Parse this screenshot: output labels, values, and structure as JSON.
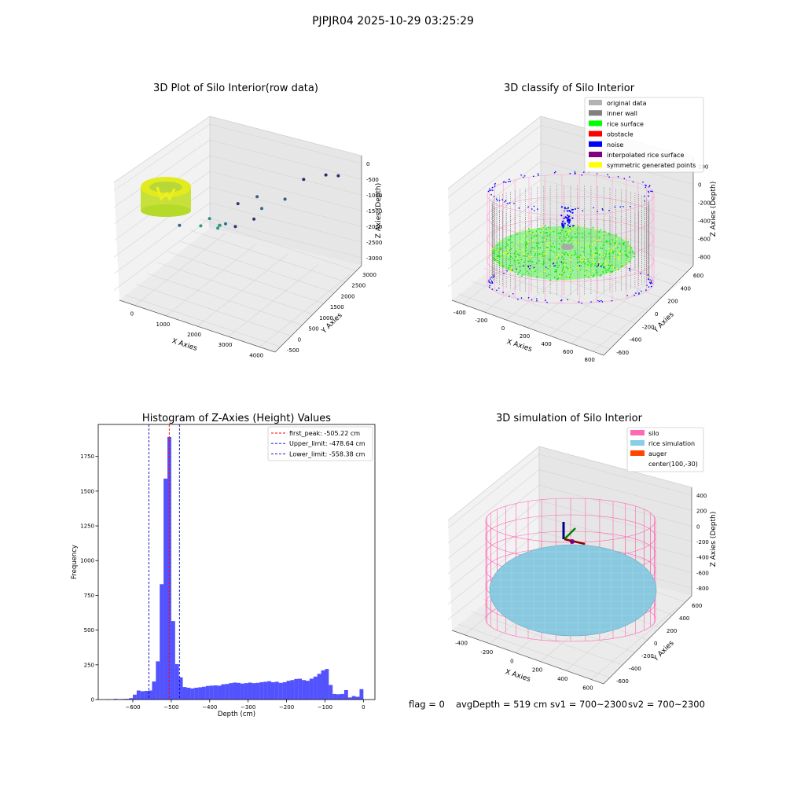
{
  "suptitle": "PJPJR04 2025-10-29 03:25:29",
  "footer": {
    "flag": "flag = 0",
    "avg": "avgDepth = 519 cm",
    "sv1": "sv1 = 700~2300",
    "sv2": "sv2 = 700~2300"
  },
  "chart_data": [
    {
      "type": "scatter3d",
      "title": "3D Plot of Silo Interior(row data)",
      "xlabel": "X Axies",
      "ylabel": "Y Axies",
      "zlabel": "Z Axies (Depth)",
      "xticks": [
        "0",
        "1000",
        "2000",
        "3000",
        "4000"
      ],
      "yticks": [
        "-500",
        "0",
        "500",
        "1000",
        "1500",
        "2000",
        "2500",
        "3000"
      ],
      "zticks": [
        "0",
        "-500",
        "-1000",
        "-1500",
        "-2000",
        "-2500",
        "-3000"
      ],
      "points": [
        {
          "x": 3900,
          "y": 3000,
          "z": -3000
        },
        {
          "x": 3700,
          "y": 2800,
          "z": -3100
        },
        {
          "x": 3300,
          "y": 2500,
          "z": -3050
        },
        {
          "x": 3000,
          "y": 1000,
          "z": -2900
        },
        {
          "x": 2700,
          "y": 700,
          "z": -2800
        },
        {
          "x": 2200,
          "y": 1500,
          "z": -2700
        },
        {
          "x": 2500,
          "y": 2900,
          "z": -1900
        },
        {
          "x": 2000,
          "y": 2700,
          "z": -1600
        },
        {
          "x": 1800,
          "y": 2800,
          "z": -1800
        },
        {
          "x": 1500,
          "y": 2000,
          "z": -1500
        },
        {
          "x": 800,
          "y": 1200,
          "z": -1800
        },
        {
          "x": 1200,
          "y": 2200,
          "z": -1200
        },
        {
          "x": 1000,
          "y": 2400,
          "z": -900
        },
        {
          "x": 900,
          "y": 2600,
          "z": -800
        },
        {
          "x": 700,
          "y": 2500,
          "z": -1000
        },
        {
          "x": 600,
          "y": 2300,
          "z": -900
        }
      ]
    },
    {
      "type": "scatter3d",
      "title": "3D classify of Silo Interior",
      "xlabel": "X Axies",
      "ylabel": "Y Axies",
      "zlabel": "Z Axies (Depth)",
      "xticks": [
        "-400",
        "-200",
        "0",
        "200",
        "400",
        "600",
        "800"
      ],
      "yticks": [
        "-600",
        "-400",
        "-200",
        "0",
        "200",
        "400",
        "600"
      ],
      "zticks": [
        "200",
        "0",
        "-200",
        "-400",
        "-600",
        "-800"
      ],
      "legend": [
        {
          "label": "original data",
          "color": "#b3b3b3"
        },
        {
          "label": "inner wall",
          "color": "#808080"
        },
        {
          "label": "rice surface",
          "color": "#00ff00"
        },
        {
          "label": "obstacle",
          "color": "#ff0000"
        },
        {
          "label": "noise",
          "color": "#0000ff"
        },
        {
          "label": "interpolated rice surface",
          "color": "#800080"
        },
        {
          "label": "symmetric generated points",
          "color": "#ffff00"
        }
      ]
    },
    {
      "type": "bar",
      "title": "Histogram of Z-Axies (Height) Values",
      "xlabel": "Depth (cm)",
      "ylabel": "Frequency",
      "xlim": [
        -690,
        30
      ],
      "ylim": [
        0,
        1980
      ],
      "xticks": [
        -600,
        -500,
        -400,
        -300,
        -200,
        -100,
        0
      ],
      "yticks": [
        0,
        250,
        500,
        750,
        1000,
        1250,
        1500,
        1750
      ],
      "bin_width": 10,
      "bin_starts": [
        -670,
        -650,
        -640,
        -630,
        -620,
        -610,
        -600,
        -590,
        -580,
        -570,
        -560,
        -550,
        -540,
        -530,
        -520,
        -510,
        -500,
        -490,
        -480,
        -470,
        -460,
        -450,
        -440,
        -430,
        -420,
        -410,
        -400,
        -390,
        -380,
        -370,
        -360,
        -350,
        -340,
        -330,
        -320,
        -310,
        -300,
        -290,
        -280,
        -270,
        -260,
        -250,
        -240,
        -230,
        -220,
        -210,
        -200,
        -190,
        -180,
        -170,
        -160,
        -150,
        -140,
        -130,
        -120,
        -110,
        -100,
        -90,
        -80,
        -70,
        -60,
        -50,
        -40,
        -30,
        -20,
        -10
      ],
      "values": [
        2,
        5,
        3,
        4,
        5,
        10,
        35,
        65,
        60,
        62,
        65,
        130,
        275,
        830,
        1590,
        1890,
        565,
        255,
        160,
        90,
        85,
        80,
        85,
        88,
        92,
        98,
        100,
        102,
        100,
        110,
        112,
        118,
        122,
        120,
        115,
        118,
        122,
        118,
        120,
        125,
        128,
        132,
        125,
        128,
        120,
        125,
        135,
        140,
        148,
        150,
        140,
        135,
        150,
        165,
        185,
        210,
        220,
        105,
        40,
        38,
        40,
        68,
        15,
        25,
        20,
        75
      ],
      "bar_color": "#0000ff",
      "vlines": [
        {
          "x": -505.22,
          "label": "first_peak: -505.22 cm",
          "color": "#ff0000"
        },
        {
          "x": -478.64,
          "label": "Upper_limit: -478.64 cm",
          "color": "#0000cc"
        },
        {
          "x": -558.38,
          "label": "Lower_limit: -558.38 cm",
          "color": "#0000cc"
        }
      ]
    },
    {
      "type": "surface3d",
      "title": "3D simulation of Silo Interior",
      "xlabel": "X Axies",
      "ylabel": "Y Axies",
      "zlabel": "Z Axies (Depth)",
      "xticks": [
        "-400",
        "-200",
        "0",
        "200",
        "400",
        "600"
      ],
      "yticks": [
        "-600",
        "-400",
        "-200",
        "0",
        "200",
        "400",
        "600"
      ],
      "zticks": [
        "400",
        "200",
        "0",
        "-200",
        "-400",
        "-600",
        "-800"
      ],
      "legend": [
        {
          "label": "silo",
          "color": "#ff69b4"
        },
        {
          "label": "rice simulation",
          "color": "#87ceeb"
        },
        {
          "label": "auger",
          "color": "#ff4500"
        },
        {
          "label": "center(100,-30)",
          "color": "#ffffff"
        }
      ]
    }
  ]
}
